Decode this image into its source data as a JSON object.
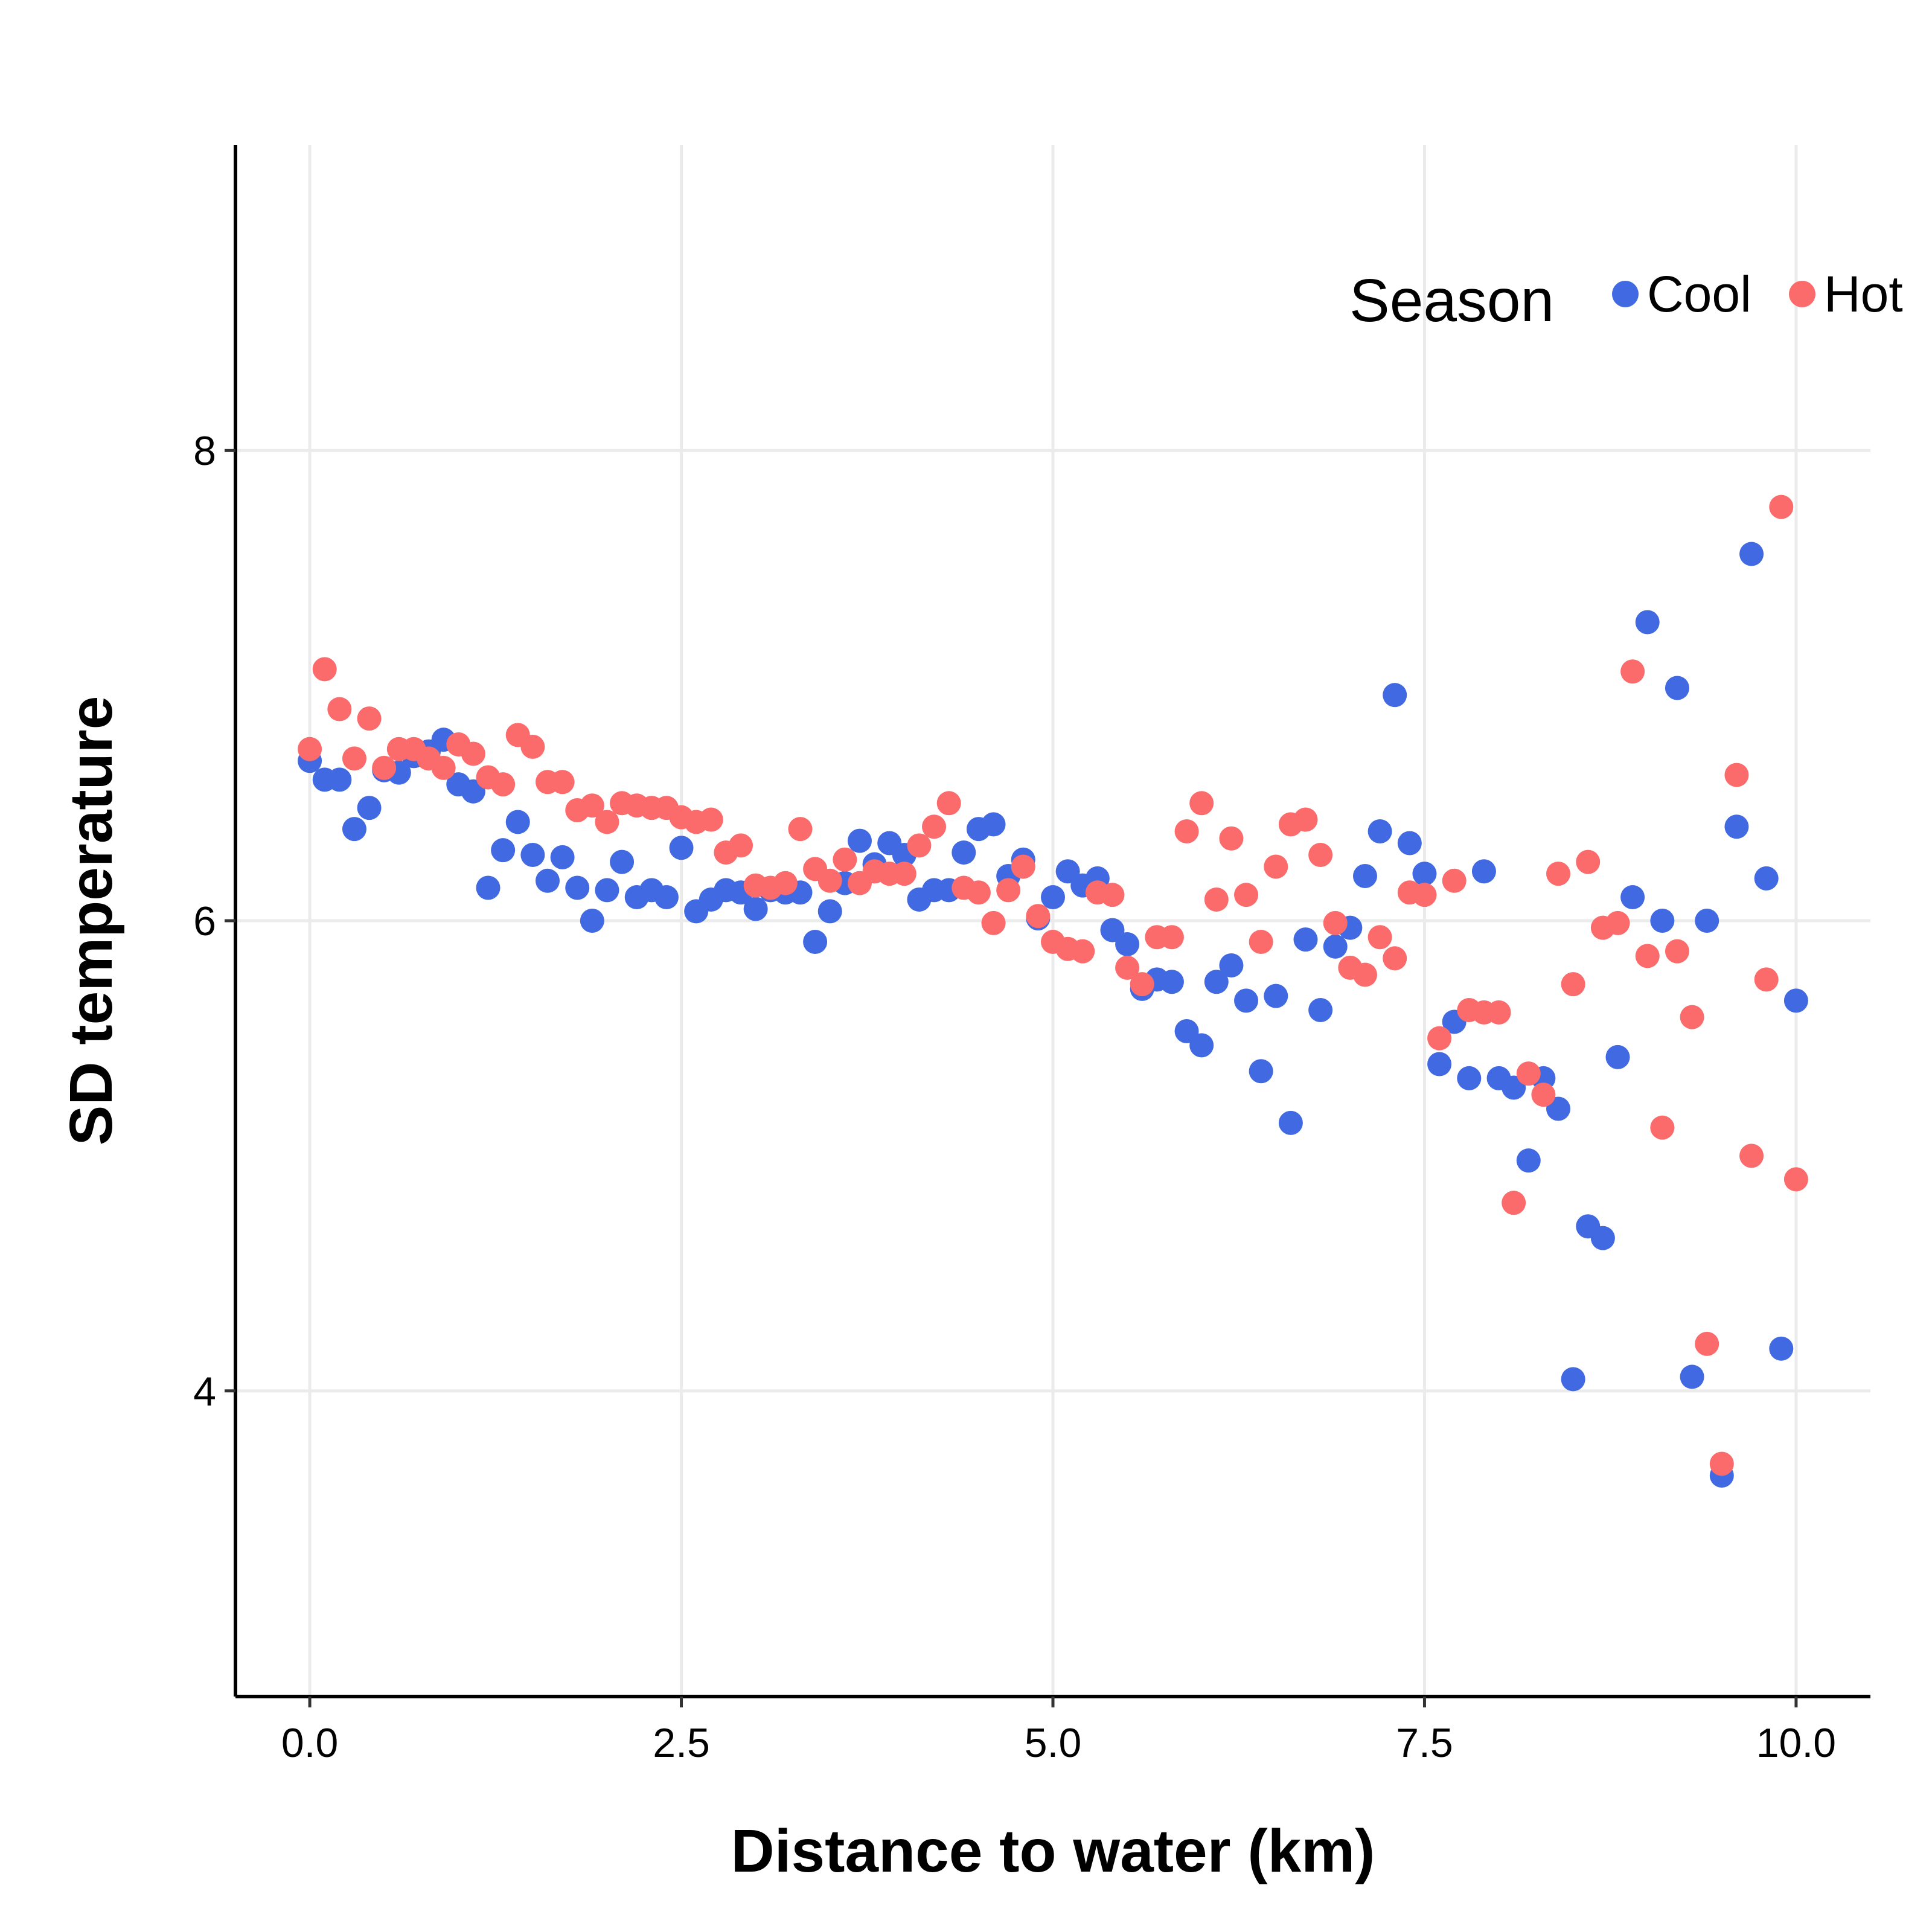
{
  "chart_data": {
    "type": "scatter",
    "title": "",
    "xlabel": "Distance to water (km)",
    "ylabel": "SD temperature",
    "xlim": [
      -0.5,
      10.5
    ],
    "ylim": [
      2.7,
      9.3
    ],
    "xticks": [
      0.0,
      2.5,
      5.0,
      7.5,
      10.0
    ],
    "xtick_labels": [
      "0.0",
      "2.5",
      "5.0",
      "7.5",
      "10.0"
    ],
    "yticks": [
      4,
      6,
      8
    ],
    "ytick_labels": [
      "4",
      "6",
      "8"
    ],
    "grid": true,
    "legend": {
      "title": "Season",
      "placement": "top-right",
      "entries": [
        "Cool",
        "Hot"
      ]
    },
    "series": [
      {
        "name": "Cool",
        "color": "#4169e1",
        "points": [
          [
            0.0,
            6.68
          ],
          [
            0.1,
            6.6
          ],
          [
            0.2,
            6.6
          ],
          [
            0.3,
            6.39
          ],
          [
            0.4,
            6.48
          ],
          [
            0.5,
            6.64
          ],
          [
            0.6,
            6.63
          ],
          [
            0.7,
            6.7
          ],
          [
            0.8,
            6.72
          ],
          [
            0.9,
            6.77
          ],
          [
            1.0,
            6.58
          ],
          [
            1.1,
            6.55
          ],
          [
            1.2,
            6.14
          ],
          [
            1.3,
            6.3
          ],
          [
            1.4,
            6.42
          ],
          [
            1.5,
            6.28
          ],
          [
            1.6,
            6.17
          ],
          [
            1.7,
            6.27
          ],
          [
            1.8,
            6.14
          ],
          [
            1.9,
            6.0
          ],
          [
            2.0,
            6.13
          ],
          [
            2.1,
            6.25
          ],
          [
            2.2,
            6.1
          ],
          [
            2.3,
            6.13
          ],
          [
            2.4,
            6.1
          ],
          [
            2.5,
            6.31
          ],
          [
            2.6,
            6.04
          ],
          [
            2.7,
            6.09
          ],
          [
            2.8,
            6.13
          ],
          [
            2.9,
            6.12
          ],
          [
            3.0,
            6.05
          ],
          [
            3.1,
            6.13
          ],
          [
            3.2,
            6.12
          ],
          [
            3.3,
            6.12
          ],
          [
            3.4,
            5.91
          ],
          [
            3.5,
            6.04
          ],
          [
            3.6,
            6.16
          ],
          [
            3.7,
            6.34
          ],
          [
            3.8,
            6.24
          ],
          [
            3.9,
            6.33
          ],
          [
            4.0,
            6.28
          ],
          [
            4.1,
            6.09
          ],
          [
            4.2,
            6.13
          ],
          [
            4.3,
            6.13
          ],
          [
            4.4,
            6.29
          ],
          [
            4.5,
            6.39
          ],
          [
            4.6,
            6.41
          ],
          [
            4.7,
            6.19
          ],
          [
            4.8,
            6.26
          ],
          [
            4.9,
            6.01
          ],
          [
            5.0,
            6.1
          ],
          [
            5.1,
            6.21
          ],
          [
            5.2,
            6.15
          ],
          [
            5.3,
            6.18
          ],
          [
            5.4,
            5.96
          ],
          [
            5.5,
            5.9
          ],
          [
            5.6,
            5.71
          ],
          [
            5.7,
            5.75
          ],
          [
            5.8,
            5.74
          ],
          [
            5.9,
            5.53
          ],
          [
            6.0,
            5.47
          ],
          [
            6.1,
            5.74
          ],
          [
            6.2,
            5.81
          ],
          [
            6.3,
            5.66
          ],
          [
            6.4,
            5.36
          ],
          [
            6.5,
            5.68
          ],
          [
            6.6,
            5.14
          ],
          [
            6.7,
            5.92
          ],
          [
            6.8,
            5.62
          ],
          [
            6.9,
            5.89
          ],
          [
            7.0,
            5.97
          ],
          [
            7.1,
            6.19
          ],
          [
            7.2,
            6.38
          ],
          [
            7.3,
            6.96
          ],
          [
            7.4,
            6.33
          ],
          [
            7.5,
            6.2
          ],
          [
            7.6,
            5.39
          ],
          [
            7.7,
            5.57
          ],
          [
            7.8,
            5.33
          ],
          [
            7.9,
            6.21
          ],
          [
            8.0,
            5.33
          ],
          [
            8.1,
            5.29
          ],
          [
            8.2,
            4.98
          ],
          [
            8.3,
            5.33
          ],
          [
            8.4,
            5.2
          ],
          [
            8.5,
            4.05
          ],
          [
            8.6,
            4.7
          ],
          [
            8.7,
            4.65
          ],
          [
            8.8,
            5.42
          ],
          [
            8.9,
            6.1
          ],
          [
            9.0,
            7.27
          ],
          [
            9.1,
            6.0
          ],
          [
            9.2,
            6.99
          ],
          [
            9.3,
            4.06
          ],
          [
            9.4,
            6.0
          ],
          [
            9.5,
            3.64
          ],
          [
            9.6,
            6.4
          ],
          [
            9.7,
            7.56
          ],
          [
            9.8,
            6.18
          ],
          [
            9.9,
            4.18
          ],
          [
            10.0,
            5.66
          ]
        ]
      },
      {
        "name": "Hot",
        "color": "#fb6b6b",
        "points": [
          [
            0.0,
            6.73
          ],
          [
            0.1,
            7.07
          ],
          [
            0.2,
            6.9
          ],
          [
            0.3,
            6.69
          ],
          [
            0.4,
            6.86
          ],
          [
            0.5,
            6.65
          ],
          [
            0.6,
            6.73
          ],
          [
            0.7,
            6.73
          ],
          [
            0.8,
            6.69
          ],
          [
            0.9,
            6.65
          ],
          [
            1.0,
            6.75
          ],
          [
            1.1,
            6.71
          ],
          [
            1.2,
            6.61
          ],
          [
            1.3,
            6.58
          ],
          [
            1.4,
            6.79
          ],
          [
            1.5,
            6.74
          ],
          [
            1.6,
            6.59
          ],
          [
            1.7,
            6.59
          ],
          [
            1.8,
            6.47
          ],
          [
            1.9,
            6.49
          ],
          [
            2.0,
            6.42
          ],
          [
            2.1,
            6.5
          ],
          [
            2.2,
            6.49
          ],
          [
            2.3,
            6.48
          ],
          [
            2.4,
            6.48
          ],
          [
            2.5,
            6.44
          ],
          [
            2.6,
            6.42
          ],
          [
            2.7,
            6.43
          ],
          [
            2.8,
            6.29
          ],
          [
            2.9,
            6.32
          ],
          [
            3.0,
            6.15
          ],
          [
            3.1,
            6.14
          ],
          [
            3.2,
            6.16
          ],
          [
            3.3,
            6.39
          ],
          [
            3.4,
            6.22
          ],
          [
            3.5,
            6.17
          ],
          [
            3.6,
            6.26
          ],
          [
            3.7,
            6.16
          ],
          [
            3.8,
            6.21
          ],
          [
            3.9,
            6.2
          ],
          [
            4.0,
            6.2
          ],
          [
            4.1,
            6.32
          ],
          [
            4.2,
            6.4
          ],
          [
            4.3,
            6.5
          ],
          [
            4.4,
            6.14
          ],
          [
            4.5,
            6.12
          ],
          [
            4.6,
            5.99
          ],
          [
            4.7,
            6.13
          ],
          [
            4.8,
            6.23
          ],
          [
            4.9,
            6.02
          ],
          [
            5.0,
            5.91
          ],
          [
            5.1,
            5.88
          ],
          [
            5.2,
            5.87
          ],
          [
            5.3,
            6.12
          ],
          [
            5.4,
            6.11
          ],
          [
            5.5,
            5.8
          ],
          [
            5.6,
            5.73
          ],
          [
            5.7,
            5.93
          ],
          [
            5.8,
            5.93
          ],
          [
            5.9,
            6.38
          ],
          [
            6.0,
            6.5
          ],
          [
            6.1,
            6.09
          ],
          [
            6.2,
            6.35
          ],
          [
            6.3,
            6.11
          ],
          [
            6.4,
            5.91
          ],
          [
            6.5,
            6.23
          ],
          [
            6.6,
            6.41
          ],
          [
            6.7,
            6.43
          ],
          [
            6.8,
            6.28
          ],
          [
            6.9,
            5.99
          ],
          [
            7.0,
            5.8
          ],
          [
            7.1,
            5.77
          ],
          [
            7.2,
            5.93
          ],
          [
            7.3,
            5.84
          ],
          [
            7.4,
            6.12
          ],
          [
            7.5,
            6.11
          ],
          [
            7.6,
            5.5
          ],
          [
            7.7,
            6.17
          ],
          [
            7.8,
            5.62
          ],
          [
            7.9,
            5.61
          ],
          [
            8.0,
            5.61
          ],
          [
            8.1,
            4.8
          ],
          [
            8.2,
            5.35
          ],
          [
            8.3,
            5.26
          ],
          [
            8.4,
            6.2
          ],
          [
            8.5,
            5.73
          ],
          [
            8.6,
            6.25
          ],
          [
            8.7,
            5.97
          ],
          [
            8.8,
            5.99
          ],
          [
            8.9,
            7.06
          ],
          [
            9.0,
            5.85
          ],
          [
            9.1,
            5.12
          ],
          [
            9.2,
            5.87
          ],
          [
            9.3,
            5.59
          ],
          [
            9.4,
            4.2
          ],
          [
            9.5,
            3.69
          ],
          [
            9.6,
            6.62
          ],
          [
            9.7,
            5.0
          ],
          [
            9.8,
            5.75
          ],
          [
            9.9,
            7.76
          ],
          [
            10.0,
            4.9
          ]
        ]
      }
    ]
  }
}
